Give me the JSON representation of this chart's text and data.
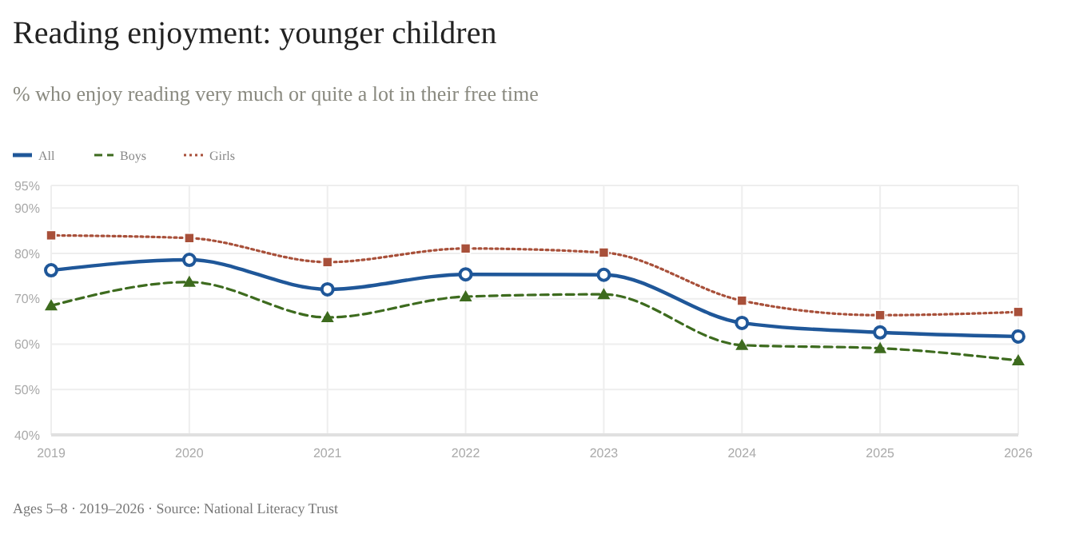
{
  "chart_data": {
    "type": "line",
    "title": "Reading enjoyment: younger children",
    "subtitle": "% who enjoy reading very much or quite a lot in their free time",
    "annotations": [
      "Ages 5–8 · 2019–2026 · Source: National Literacy Trust"
    ],
    "x": [
      2019,
      2020,
      2021,
      2022,
      2023,
      2024,
      2025,
      2026
    ],
    "series": [
      {
        "name": "All",
        "color": "#1f5799",
        "marker": "circle",
        "line_style": "solid",
        "values": [
          76.3,
          78.6,
          72.1,
          75.4,
          75.3,
          64.7,
          62.6,
          61.7
        ]
      },
      {
        "name": "Boys",
        "color": "#3d6b1e",
        "marker": "triangle",
        "line_style": "dashed",
        "values": [
          68.5,
          73.7,
          65.9,
          70.5,
          71.0,
          59.8,
          59.1,
          56.4
        ]
      },
      {
        "name": "Girls",
        "color": "#a8503a",
        "marker": "square",
        "line_style": "dotted",
        "values": [
          84.0,
          83.4,
          78.1,
          81.1,
          80.2,
          69.6,
          66.4,
          67.1
        ]
      }
    ],
    "xlim": [
      2019,
      2026
    ],
    "xticks": [
      2019,
      2020,
      2021,
      2022,
      2023,
      2024,
      2025,
      2026
    ],
    "ylim": [
      40,
      95
    ],
    "yticks": [
      {
        "value": 40,
        "label": "40%"
      },
      {
        "value": 50,
        "label": "50%"
      },
      {
        "value": 60,
        "label": "60%"
      },
      {
        "value": 70,
        "label": "70%"
      },
      {
        "value": 80,
        "label": "80%"
      },
      {
        "value": 90,
        "label": "90%"
      },
      {
        "value": 95,
        "label": "95%"
      }
    ],
    "grid": true,
    "legend": "top left"
  }
}
